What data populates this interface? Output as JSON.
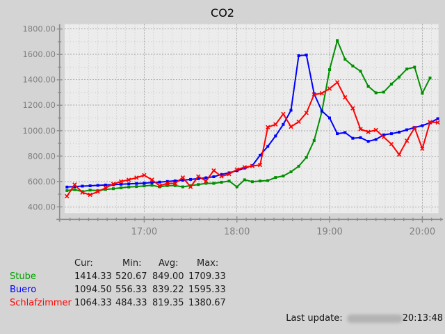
{
  "title": "CO2",
  "chart_data": {
    "type": "line",
    "title": "CO2",
    "xlabel": "",
    "ylabel": "",
    "grid": true,
    "legend_position": "bottom-table",
    "y_tick_labels": [
      "1800.00",
      "1600.00",
      "1400.00",
      "1200.00",
      "1000.00",
      "800.00",
      "600.00",
      "400.00"
    ],
    "y_tick_values": [
      1800,
      1600,
      1400,
      1200,
      1000,
      800,
      600,
      400
    ],
    "y_minor_step": 100,
    "ylim": [
      351,
      1838
    ],
    "x_tick_labels": [
      "17:00",
      "18:00",
      "19:00",
      "20:00"
    ],
    "x_minor_minutes": 6,
    "times": [
      "16:10",
      "16:15",
      "16:20",
      "16:25",
      "16:30",
      "16:35",
      "16:40",
      "16:45",
      "16:50",
      "16:55",
      "17:00",
      "17:05",
      "17:10",
      "17:15",
      "17:20",
      "17:25",
      "17:30",
      "17:35",
      "17:40",
      "17:45",
      "17:50",
      "17:55",
      "18:00",
      "18:05",
      "18:10",
      "18:15",
      "18:20",
      "18:25",
      "18:30",
      "18:35",
      "18:40",
      "18:45",
      "18:50",
      "18:55",
      "19:00",
      "19:05",
      "19:10",
      "19:15",
      "19:20",
      "19:25",
      "19:30",
      "19:35",
      "19:40",
      "19:45",
      "19:50",
      "19:55",
      "20:00",
      "20:05",
      "20:10"
    ],
    "series": [
      {
        "name": "Stube",
        "color": "#008F00",
        "marker": "square",
        "values": [
          528,
          536,
          520.67,
          532,
          528,
          537,
          543,
          550,
          556,
          560,
          565,
          570,
          558,
          567,
          567,
          558,
          567,
          576,
          585,
          585,
          594,
          603,
          558,
          613,
          598,
          604,
          607,
          631,
          643,
          676,
          720,
          790,
          922,
          1150,
          1480,
          1709.33,
          1562,
          1509,
          1468,
          1349,
          1298,
          1303,
          1367,
          1422,
          1485,
          1500,
          1295,
          1414.33,
          null
        ]
      },
      {
        "name": "Buero",
        "color": "#0000FF",
        "marker": "square",
        "values": [
          556.33,
          560,
          563,
          566,
          569,
          572,
          575,
          578,
          581,
          584,
          587,
          591,
          595,
          600,
          605,
          610,
          616,
          622,
          629,
          637,
          655,
          668,
          685,
          705,
          725,
          807,
          876,
          958,
          1049,
          1160,
          1590,
          1595.33,
          1290,
          1155,
          1100,
          976,
          985,
          940,
          945,
          916,
          931,
          967,
          976,
          988,
          1007,
          1025,
          1040,
          1062,
          1094.5
        ]
      },
      {
        "name": "Schlafzimmer",
        "color": "#FF0000",
        "marker": "x",
        "values": [
          484.33,
          575,
          513,
          495,
          520,
          549,
          580,
          600,
          613,
          630,
          649,
          613,
          567,
          585,
          585,
          631,
          558,
          640,
          604,
          686,
          640,
          658,
          694,
          712,
          722,
          730,
          1027,
          1049,
          1131,
          1031,
          1070,
          1140,
          1285,
          1294,
          1331,
          1380.67,
          1262,
          1176,
          1012,
          990,
          1005,
          950,
          894,
          812,
          921,
          1022,
          858,
          1067,
          1064.33
        ]
      }
    ]
  },
  "stats": {
    "headers": [
      "Cur:",
      "Min:",
      "Avg:",
      "Max:"
    ],
    "rows": [
      {
        "name": "Stube",
        "color": "#00A000",
        "cur": "1414.33",
        "min": "520.67",
        "avg": "849.00",
        "max": "1709.33"
      },
      {
        "name": "Buero",
        "color": "#0000FF",
        "cur": "1094.50",
        "min": "556.33",
        "avg": "839.22",
        "max": "1595.33"
      },
      {
        "name": "Schlafzimmer",
        "color": "#FF0000",
        "cur": "1064.33",
        "min": "484.33",
        "avg": "819.35",
        "max": "1380.67"
      }
    ]
  },
  "footer": {
    "label": "Last update:",
    "time": "20:13:48",
    "redacted_date": true
  },
  "colors": {
    "page_bg": "#d4d4d4",
    "plot_bg": "#ececec",
    "axis": "#8c8c8c",
    "tick_label": "#808080",
    "grid_major": "#a6a6a6",
    "grid_minor": "#c4c4c4",
    "title": "#000000"
  }
}
